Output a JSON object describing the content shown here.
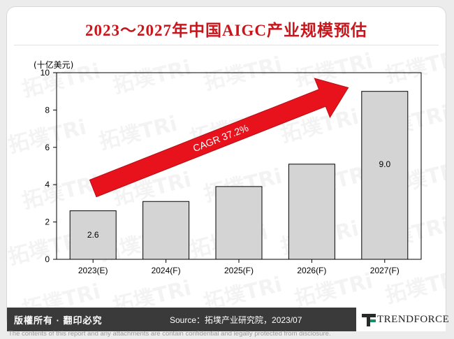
{
  "title": "2023～2027年中国AIGC产业规模预估",
  "watermark_text": "拓墣TRi",
  "chart_data": {
    "type": "bar",
    "title": "2023～2027年中国AIGC产业规模预估",
    "ylabel": "(十亿美元)",
    "xlabel": "",
    "categories": [
      "2023(E)",
      "2024(F)",
      "2025(F)",
      "2026(F)",
      "2027(F)"
    ],
    "values": [
      2.6,
      3.1,
      3.9,
      5.1,
      9.0
    ],
    "data_labels": [
      "2.6",
      "",
      "",
      "",
      "9.0"
    ],
    "ylim": [
      0,
      10
    ],
    "yticks": [
      0,
      2,
      4,
      6,
      8,
      10
    ],
    "grid": false,
    "bar_color": "#d4d4d4",
    "annotation": {
      "text": "CAGR 37.2%",
      "type": "arrow",
      "color": "#e8121d"
    }
  },
  "footer": {
    "copyright": "版權所有 · 翻印必究",
    "source": "Source：拓墣产业研究院，2023/07",
    "brand": "TRENDFORCE",
    "disclaimer": "The contents of this report and any attachments are contain confidential and legally protected from disclosure."
  }
}
